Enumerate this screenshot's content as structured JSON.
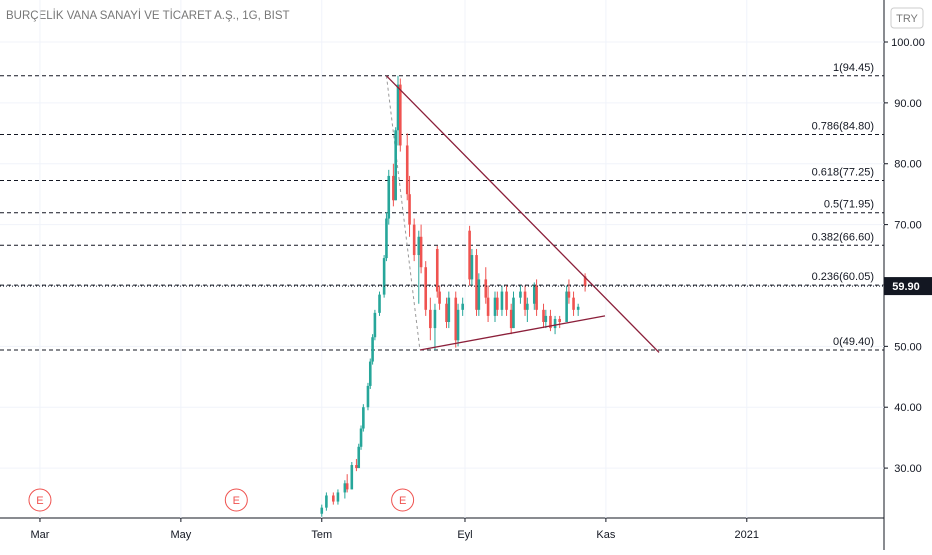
{
  "chart_data": {
    "type": "candlestick",
    "title": "BURÇELİK VANA SANAYİ VE TİCARET A.Ş., 1G, BIST",
    "currency": "TRY",
    "up_color": "#26a69a",
    "down_color": "#ef5350",
    "xlim": [
      42.7,
      425.4
    ],
    "ylim": [
      21.8,
      106.9
    ],
    "xticks": [
      {
        "value": 60,
        "label": "Mar"
      },
      {
        "value": 121,
        "label": "May"
      },
      {
        "value": 182,
        "label": "Tem"
      },
      {
        "value": 244,
        "label": "Eyl"
      },
      {
        "value": 305,
        "label": "Kas"
      },
      {
        "value": 366,
        "label": "2021"
      }
    ],
    "yticks": [
      {
        "value": 30,
        "label": "30.00"
      },
      {
        "value": 40,
        "label": "40.00"
      },
      {
        "value": 50,
        "label": "50.00"
      },
      {
        "value": 60,
        "label": "60.00"
      },
      {
        "value": 70,
        "label": "70.00"
      },
      {
        "value": 80,
        "label": "80.00"
      },
      {
        "value": 90,
        "label": "90.00"
      },
      {
        "value": 100,
        "label": "100.00"
      }
    ],
    "x": [
      182,
      184,
      187,
      189,
      192,
      193,
      195,
      197,
      198,
      199,
      200,
      202,
      203,
      204,
      205,
      207,
      209,
      210,
      211,
      213,
      214,
      215,
      216,
      219,
      220,
      222,
      224,
      225,
      227,
      229,
      231,
      232,
      233,
      236,
      237,
      240,
      241,
      243,
      246,
      247,
      249,
      250,
      253,
      254,
      257,
      258,
      260,
      262,
      264,
      265,
      268,
      270,
      271,
      274,
      275,
      278,
      279,
      281,
      283,
      285,
      288,
      289,
      291,
      293,
      296
    ],
    "open": [
      22.5,
      23.5,
      25.5,
      24.5,
      26,
      27.5,
      26.5,
      30.5,
      30,
      33.5,
      36.5,
      40,
      43.5,
      47.5,
      51.5,
      55.5,
      58.5,
      64.5,
      71,
      78,
      74,
      85.5,
      93,
      83,
      75,
      70,
      65,
      68,
      63,
      56,
      53,
      66,
      59,
      57,
      54,
      58,
      51,
      56,
      69,
      61,
      65,
      56,
      61,
      58,
      55,
      58,
      56,
      59,
      56,
      53,
      58,
      59,
      56,
      57,
      60,
      56,
      54,
      55,
      53,
      54.5,
      54,
      59,
      58,
      56,
      61.5
    ],
    "high": [
      24,
      26,
      26,
      26.5,
      28,
      29,
      31,
      31.5,
      34,
      37,
      40.5,
      44,
      48,
      52,
      56,
      59,
      65,
      72,
      79,
      80,
      86,
      94.45,
      94,
      85,
      78,
      71,
      69,
      70,
      64,
      58,
      57,
      66.5,
      60,
      58,
      59,
      59,
      57,
      58,
      69.8,
      66,
      66,
      62,
      63,
      60,
      59,
      59,
      60,
      60,
      57,
      59,
      60,
      60,
      58,
      60.5,
      61,
      57,
      56,
      56,
      55,
      55,
      60,
      61,
      59,
      57,
      62
    ],
    "low": [
      22,
      23,
      24,
      24,
      25,
      26,
      26.5,
      29.5,
      30,
      33,
      36,
      39.5,
      43,
      47,
      51,
      55,
      58,
      64,
      70,
      73,
      74,
      83,
      82,
      74,
      68,
      64,
      57,
      62,
      55,
      51,
      49.4,
      58,
      56,
      53,
      53,
      49.8,
      50,
      55,
      60,
      60,
      55,
      55,
      57,
      54,
      54,
      55,
      55,
      55,
      52,
      53,
      57,
      55,
      54,
      56,
      55,
      53,
      53,
      52.5,
      52,
      53,
      54,
      57,
      55,
      55,
      59
    ],
    "close": [
      23.5,
      25.5,
      24.5,
      26,
      27.5,
      26.5,
      30.5,
      30,
      33.5,
      36.5,
      40,
      43.5,
      47.5,
      51.5,
      55.5,
      58.5,
      64.5,
      71,
      78,
      74,
      85.5,
      93,
      83,
      75,
      70,
      65,
      68,
      63,
      56,
      53,
      56,
      59,
      57,
      54,
      58,
      51,
      56,
      57,
      61,
      65,
      56,
      61,
      58,
      55,
      58,
      56,
      59,
      56,
      53,
      58,
      59,
      56,
      57,
      60,
      56,
      54,
      55,
      53,
      54.5,
      54,
      59,
      58,
      56,
      56.5,
      59.9
    ],
    "last_price": {
      "value": 59.9,
      "label": "59.90"
    },
    "fib_levels": [
      {
        "label": "1(94.45)",
        "value": 94.45
      },
      {
        "label": "0.786(84.80)",
        "value": 84.8
      },
      {
        "label": "0.618(77.25)",
        "value": 77.25
      },
      {
        "label": "0.5(71.95)",
        "value": 71.95
      },
      {
        "label": "0.382(66.60)",
        "value": 66.6
      },
      {
        "label": "0.236(60.05)",
        "value": 60.05
      },
      {
        "label": "0(49.40)",
        "value": 49.4
      }
    ],
    "trend_lines": [
      {
        "x": [
          210,
          328
        ],
        "y": [
          94.45,
          49
        ]
      },
      {
        "x": [
          224.5,
          304.6
        ],
        "y": [
          49.4,
          55
        ]
      }
    ],
    "fib_anchor": {
      "x": [
        210,
        224.5
      ],
      "y": [
        94.45,
        49.4
      ]
    },
    "events": [
      {
        "x": 60,
        "label": "E"
      },
      {
        "x": 145,
        "label": "E"
      },
      {
        "x": 217,
        "label": "E"
      }
    ]
  }
}
